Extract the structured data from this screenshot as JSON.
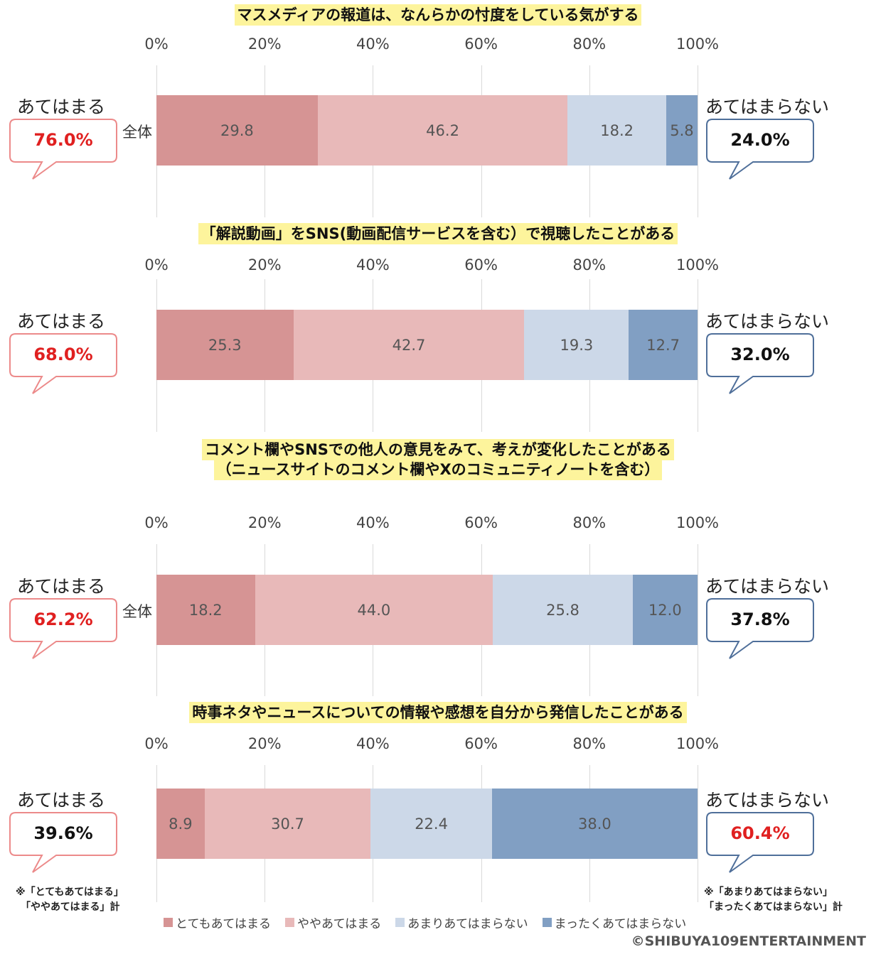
{
  "colors": {
    "very": "#d69494",
    "somewhat": "#e8b9b9",
    "not_much": "#ccd8e8",
    "not_at_all": "#819fc3",
    "title_bg": "#fdf49c",
    "red_text": "#e02020",
    "pink_border": "#ec8a8a",
    "blue_border": "#4f6f9a"
  },
  "labels": {
    "agree": "あてはまる",
    "disagree": "あてはまらない"
  },
  "ticks": [
    "0%",
    "20%",
    "40%",
    "60%",
    "80%",
    "100%"
  ],
  "chart_data": [
    {
      "type": "bar",
      "title": "マスメディアの報道は、なんらかの忖度をしている気がする",
      "row_label": "全体",
      "categories": [
        "全体"
      ],
      "series": [
        {
          "name": "とてもあてはまる",
          "values": [
            29.8
          ]
        },
        {
          "name": "ややあてはまる",
          "values": [
            46.2
          ]
        },
        {
          "name": "あまりあてはまらない",
          "values": [
            18.2
          ]
        },
        {
          "name": "まったくあてはまらない",
          "values": [
            5.8
          ]
        }
      ],
      "value_labels": [
        "29.8",
        "46.2",
        "18.2",
        "5.8"
      ],
      "agree_total": "76.0%",
      "disagree_total": "24.0%",
      "highlight": "agree",
      "ylim": [
        0,
        100
      ]
    },
    {
      "type": "bar",
      "title": "「解説動画」をSNS(動画配信サービスを含む）で視聴したことがある",
      "row_label": "",
      "categories": [
        ""
      ],
      "series": [
        {
          "name": "とてもあてはまる",
          "values": [
            25.3
          ]
        },
        {
          "name": "ややあてはまる",
          "values": [
            42.7
          ]
        },
        {
          "name": "あまりあてはまらない",
          "values": [
            19.3
          ]
        },
        {
          "name": "まったくあてはまらない",
          "values": [
            12.7
          ]
        }
      ],
      "value_labels": [
        "25.3",
        "42.7",
        "19.3",
        "12.7"
      ],
      "agree_total": "68.0%",
      "disagree_total": "32.0%",
      "highlight": "agree",
      "ylim": [
        0,
        100
      ]
    },
    {
      "type": "bar",
      "title": "コメント欄やSNSでの他人の意見をみて、考えが変化したことがある",
      "title2": "（ニュースサイトのコメント欄やXのコミュニティノートを含む）",
      "row_label": "全体",
      "categories": [
        "全体"
      ],
      "series": [
        {
          "name": "とてもあてはまる",
          "values": [
            18.2
          ]
        },
        {
          "name": "ややあてはまる",
          "values": [
            44.0
          ]
        },
        {
          "name": "あまりあてはまらない",
          "values": [
            25.8
          ]
        },
        {
          "name": "まったくあてはまらない",
          "values": [
            12.0
          ]
        }
      ],
      "value_labels": [
        "18.2",
        "44.0",
        "25.8",
        "12.0"
      ],
      "agree_total": "62.2%",
      "disagree_total": "37.8%",
      "highlight": "agree",
      "ylim": [
        0,
        100
      ]
    },
    {
      "type": "bar",
      "title": "時事ネタやニュースについての情報や感想を自分から発信したことがある",
      "row_label": "",
      "categories": [
        ""
      ],
      "series": [
        {
          "name": "とてもあてはまる",
          "values": [
            8.9
          ]
        },
        {
          "name": "ややあてはまる",
          "values": [
            30.7
          ]
        },
        {
          "name": "あまりあてはまらない",
          "values": [
            22.4
          ]
        },
        {
          "name": "まったくあてはまらない",
          "values": [
            38.0
          ]
        }
      ],
      "value_labels": [
        "8.9",
        "30.7",
        "22.4",
        "38.0"
      ],
      "agree_total": "39.6%",
      "disagree_total": "60.4%",
      "highlight": "disagree",
      "ylim": [
        0,
        100
      ]
    }
  ],
  "notes": {
    "agree": "※「とてもあてはまる」\n　「ややあてはまる」計",
    "disagree": "※「あまりあてはまらない」\n「まったくあてはまらない」計"
  },
  "legend": [
    "とてもあてはまる",
    "ややあてはまる",
    "あまりあてはまらない",
    "まったくあてはまらない"
  ],
  "copyright": "©SHIBUYA109ENTERTAINMENT"
}
